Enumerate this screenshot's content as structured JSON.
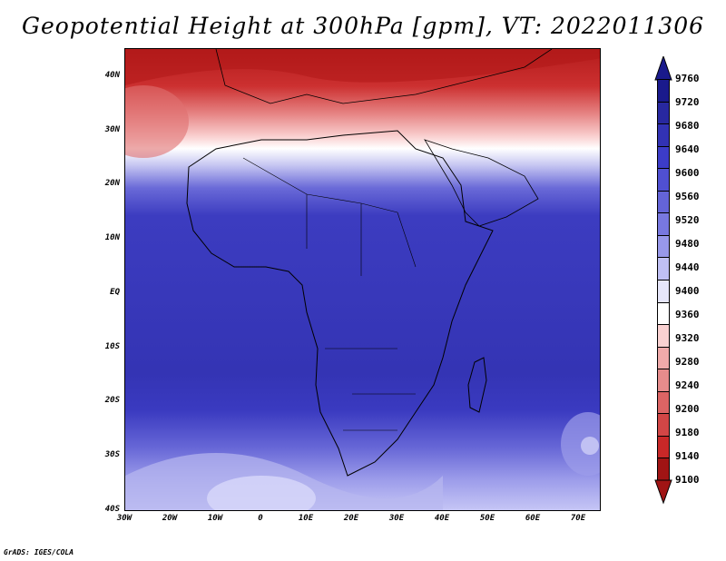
{
  "title": "Geopotential Height at 300hPa [gpm], VT: 2022011306",
  "credit": "GrADS: IGES/COLA",
  "map": {
    "lat_labels": [
      "40N",
      "30N",
      "20N",
      "10N",
      "EQ",
      "10S",
      "20S",
      "30S",
      "40S"
    ],
    "lon_labels": [
      "30W",
      "20W",
      "10W",
      "0",
      "10E",
      "20E",
      "30E",
      "40E",
      "50E",
      "60E",
      "70E"
    ],
    "lat_range": [
      -40,
      44
    ],
    "lon_range": [
      -30,
      75
    ]
  },
  "colorbar": {
    "levels": [
      "9760",
      "9720",
      "9680",
      "9640",
      "9600",
      "9560",
      "9520",
      "9480",
      "9440",
      "9400",
      "9360",
      "9320",
      "9280",
      "9240",
      "9200",
      "9180",
      "9140",
      "9100"
    ],
    "colors": [
      "#1a1a8c",
      "#2828a0",
      "#3232b4",
      "#3c3cc8",
      "#5050d2",
      "#6464d8",
      "#7878e0",
      "#9898ea",
      "#c0c0f4",
      "#e6e6fa",
      "#ffffff",
      "#fad2d2",
      "#f0aaaa",
      "#e68c8c",
      "#dc6464",
      "#d24646",
      "#c82828",
      "#a01414"
    ]
  }
}
